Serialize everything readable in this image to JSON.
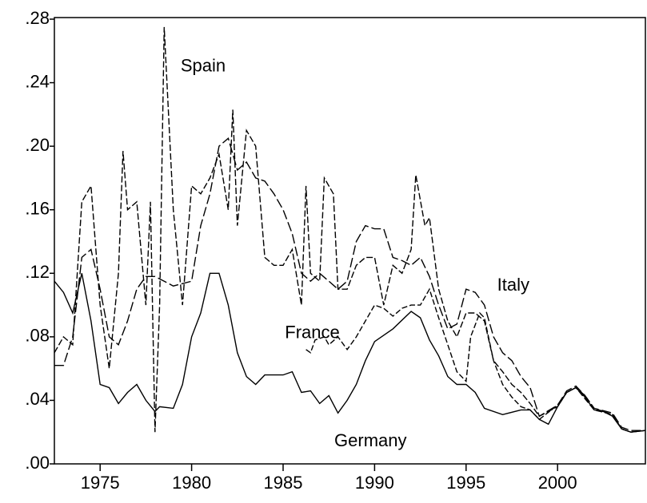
{
  "chart_data": {
    "type": "line",
    "xlim": [
      1972.5,
      2004.8
    ],
    "xticks": [
      1975,
      1980,
      1985,
      1990,
      1995,
      2000
    ],
    "ylim": [
      0,
      0.28
    ],
    "yticks": [
      {
        "value": 0,
        "label": ".00"
      },
      {
        "value": 0.04,
        "label": ".04"
      },
      {
        "value": 0.08,
        "label": ".08"
      },
      {
        "value": 0.12,
        "label": ".12"
      },
      {
        "value": 0.16,
        "label": ".16"
      },
      {
        "value": 0.2,
        "label": ".20"
      },
      {
        "value": 0.24,
        "label": ".24"
      },
      {
        "value": 0.28,
        "label": ".28"
      }
    ],
    "series": [
      {
        "name": "Germany",
        "color": "#000000",
        "x": [
          1972.5,
          1973,
          1973.5,
          1974,
          1974.5,
          1975,
          1975.5,
          1976,
          1976.5,
          1977,
          1977.5,
          1978,
          1978.25,
          1979,
          1979.5,
          1980,
          1980.5,
          1981,
          1981.5,
          1982,
          1982.5,
          1983,
          1983.5,
          1984,
          1985,
          1985.5,
          1986,
          1986.5,
          1987,
          1987.5,
          1988,
          1988.5,
          1989,
          1989.5,
          1990,
          1991,
          1992,
          1992.5,
          1993,
          1993.5,
          1994,
          1994.5,
          1995,
          1995.5,
          1996,
          1997,
          1998,
          1998.5,
          1999,
          1999.5,
          2000,
          2000.5,
          2001,
          2001.5,
          2002,
          2002.5,
          2003,
          2003.5,
          2004,
          2004.8
        ],
        "values": [
          0.115,
          0.108,
          0.095,
          0.12,
          0.09,
          0.05,
          0.048,
          0.038,
          0.045,
          0.05,
          0.04,
          0.033,
          0.036,
          0.035,
          0.05,
          0.08,
          0.095,
          0.12,
          0.12,
          0.1,
          0.07,
          0.055,
          0.05,
          0.056,
          0.056,
          0.058,
          0.045,
          0.046,
          0.038,
          0.043,
          0.032,
          0.04,
          0.05,
          0.065,
          0.077,
          0.085,
          0.096,
          0.092,
          0.078,
          0.068,
          0.055,
          0.05,
          0.05,
          0.045,
          0.035,
          0.031,
          0.034,
          0.034,
          0.028,
          0.025,
          0.036,
          0.045,
          0.048,
          0.042,
          0.034,
          0.033,
          0.03,
          0.022,
          0.02,
          0.021
        ]
      },
      {
        "name": "France",
        "color": "#000000",
        "x": [
          1986.25,
          1986.5,
          1986.75,
          1987.25,
          1987.5,
          1988,
          1988.5,
          1989,
          1989.5,
          1990,
          1990.5,
          1991,
          1991.5,
          1992,
          1992.5,
          1993,
          1993.5,
          1994,
          1994.5,
          1995,
          1995.25,
          1995.75,
          1996,
          1996.5,
          1997,
          1997.5,
          1998,
          1998.5,
          1999,
          2000,
          2000.5,
          2001,
          2001.5,
          2002,
          2003,
          2003.5,
          2004,
          2004.8
        ],
        "values": [
          0.072,
          0.07,
          0.078,
          0.08,
          0.075,
          0.08,
          0.072,
          0.08,
          0.09,
          0.1,
          0.098,
          0.093,
          0.098,
          0.1,
          0.1,
          0.11,
          0.092,
          0.075,
          0.058,
          0.052,
          0.08,
          0.095,
          0.092,
          0.065,
          0.05,
          0.042,
          0.036,
          0.034,
          0.028,
          0.037,
          0.045,
          0.048,
          0.043,
          0.035,
          0.031,
          0.022,
          0.02,
          0.021
        ]
      },
      {
        "name": "Italy",
        "color": "#000000",
        "x": [
          1972.5,
          1973,
          1973.5,
          1974,
          1974.5,
          1975,
          1975.5,
          1976,
          1976.5,
          1977,
          1977.5,
          1978,
          1979,
          1980,
          1980.5,
          1981,
          1981.5,
          1982,
          1982.5,
          1983,
          1983.5,
          1984,
          1984.5,
          1985,
          1985.5,
          1986,
          1986.5,
          1987,
          1987.5,
          1988,
          1988.5,
          1989,
          1989.5,
          1990,
          1990.5,
          1991,
          1991.5,
          1992,
          1992.5,
          1993,
          1993.5,
          1994,
          1994.5,
          1995,
          1995.5,
          1996,
          1996.5,
          1997,
          1997.5,
          1998,
          1998.5,
          1999,
          2000,
          2000.5,
          2001,
          2001.5,
          2002,
          2003,
          2003.5,
          2004,
          2004.8
        ],
        "values": [
          0.062,
          0.062,
          0.08,
          0.13,
          0.135,
          0.11,
          0.08,
          0.075,
          0.09,
          0.11,
          0.118,
          0.118,
          0.112,
          0.115,
          0.15,
          0.17,
          0.2,
          0.205,
          0.185,
          0.19,
          0.18,
          0.178,
          0.17,
          0.16,
          0.145,
          0.12,
          0.115,
          0.12,
          0.115,
          0.11,
          0.115,
          0.14,
          0.15,
          0.148,
          0.148,
          0.13,
          0.128,
          0.125,
          0.13,
          0.118,
          0.1,
          0.085,
          0.088,
          0.11,
          0.108,
          0.1,
          0.08,
          0.07,
          0.065,
          0.055,
          0.048,
          0.03,
          0.037,
          0.046,
          0.049,
          0.043,
          0.035,
          0.032,
          0.023,
          0.021,
          0.021
        ]
      },
      {
        "name": "Spain",
        "color": "#000000",
        "x": [
          1972.5,
          1973,
          1973.5,
          1974,
          1974.5,
          1975,
          1975.5,
          1976,
          1976.25,
          1976.5,
          1977,
          1977.5,
          1977.75,
          1978,
          1978.25,
          1978.5,
          1979,
          1979.5,
          1980,
          1980.5,
          1981,
          1981.5,
          1982,
          1982.25,
          1982.5,
          1983,
          1983.5,
          1984,
          1984.5,
          1985,
          1985.5,
          1986,
          1986.25,
          1986.5,
          1987,
          1987.25,
          1987.75,
          1988,
          1988.5,
          1989,
          1989.5,
          1990,
          1990.5,
          1991,
          1991.5,
          1992,
          1992.25,
          1992.75,
          1993,
          1993.5,
          1994,
          1994.5,
          1995,
          1995.5,
          1996,
          1996.5,
          1997,
          1997.5,
          1998,
          1998.5,
          1999,
          2000,
          2000.5,
          2001,
          2002,
          2003,
          2003.5,
          2004,
          2004.8
        ],
        "values": [
          0.07,
          0.08,
          0.075,
          0.165,
          0.175,
          0.1,
          0.06,
          0.12,
          0.197,
          0.16,
          0.165,
          0.1,
          0.165,
          0.02,
          0.1,
          0.275,
          0.16,
          0.1,
          0.175,
          0.17,
          0.18,
          0.195,
          0.16,
          0.223,
          0.15,
          0.21,
          0.2,
          0.13,
          0.125,
          0.125,
          0.135,
          0.1,
          0.175,
          0.12,
          0.115,
          0.18,
          0.17,
          0.11,
          0.11,
          0.125,
          0.13,
          0.13,
          0.1,
          0.125,
          0.12,
          0.135,
          0.182,
          0.15,
          0.155,
          0.11,
          0.09,
          0.08,
          0.095,
          0.095,
          0.09,
          0.065,
          0.058,
          0.05,
          0.045,
          0.038,
          0.03,
          0.036,
          0.045,
          0.048,
          0.034,
          0.031,
          0.022,
          0.02,
          0.021
        ]
      }
    ]
  }
}
